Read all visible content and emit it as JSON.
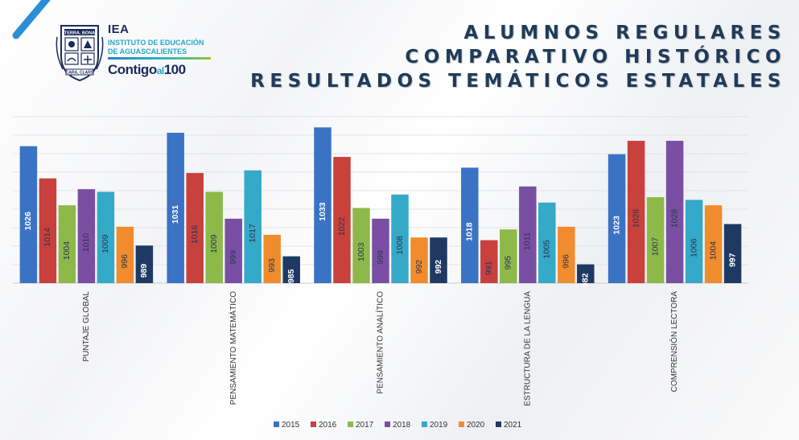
{
  "header": {
    "logo": {
      "acronym": "IEA",
      "line1": "INSTITUTO DE EDUCACIÓN",
      "line2": "DE AGUASCALIENTES",
      "slogan_main": "Contigo",
      "slogan_small": "al",
      "slogan_num": "100",
      "crest_top": "TERRA, BONA",
      "crest_bottom": "CARA, CLARS",
      "colors": {
        "navy": "#1b2a5c",
        "teal": "#23a9c9",
        "green": "#8cc63f"
      }
    },
    "title_lines": [
      "ALUMNOS REGULARES",
      "COMPARATIVO HISTÓRICO",
      "RESULTADOS TEMÁTICOS ESTATALES"
    ]
  },
  "chart_data": {
    "type": "bar",
    "title": "",
    "xlabel": "",
    "ylabel": "",
    "ylim": [
      975,
      1037
    ],
    "grid": true,
    "legend_placement": "bottom",
    "categories": [
      "PUNTAJE GLOBAL",
      "PENSAMIENTO MATEMÁTICO",
      "PENSAMIENTO ANALÍTICO",
      "ESTRUCTURA DE LA LENGUA",
      "COMPRENSIÓN LECTORA"
    ],
    "series": [
      {
        "name": "2015",
        "color": "#3b73c4",
        "values": [
          1026,
          1031,
          1033,
          1018,
          1023
        ]
      },
      {
        "name": "2016",
        "color": "#c8413c",
        "values": [
          1014,
          1016,
          1022,
          991,
          1028
        ]
      },
      {
        "name": "2017",
        "color": "#8db94a",
        "values": [
          1004,
          1009,
          1003,
          995,
          1007
        ]
      },
      {
        "name": "2018",
        "color": "#7a4fa3",
        "values": [
          1010,
          999,
          999,
          1011,
          1028
        ]
      },
      {
        "name": "2019",
        "color": "#35a9c8",
        "values": [
          1009,
          1017,
          1008,
          1005,
          1006
        ]
      },
      {
        "name": "2020",
        "color": "#f08c2d",
        "values": [
          996,
          993,
          992,
          996,
          1004
        ]
      },
      {
        "name": "2021",
        "color": "#1e3a63",
        "values": [
          989,
          985,
          992,
          982,
          997
        ]
      }
    ]
  }
}
